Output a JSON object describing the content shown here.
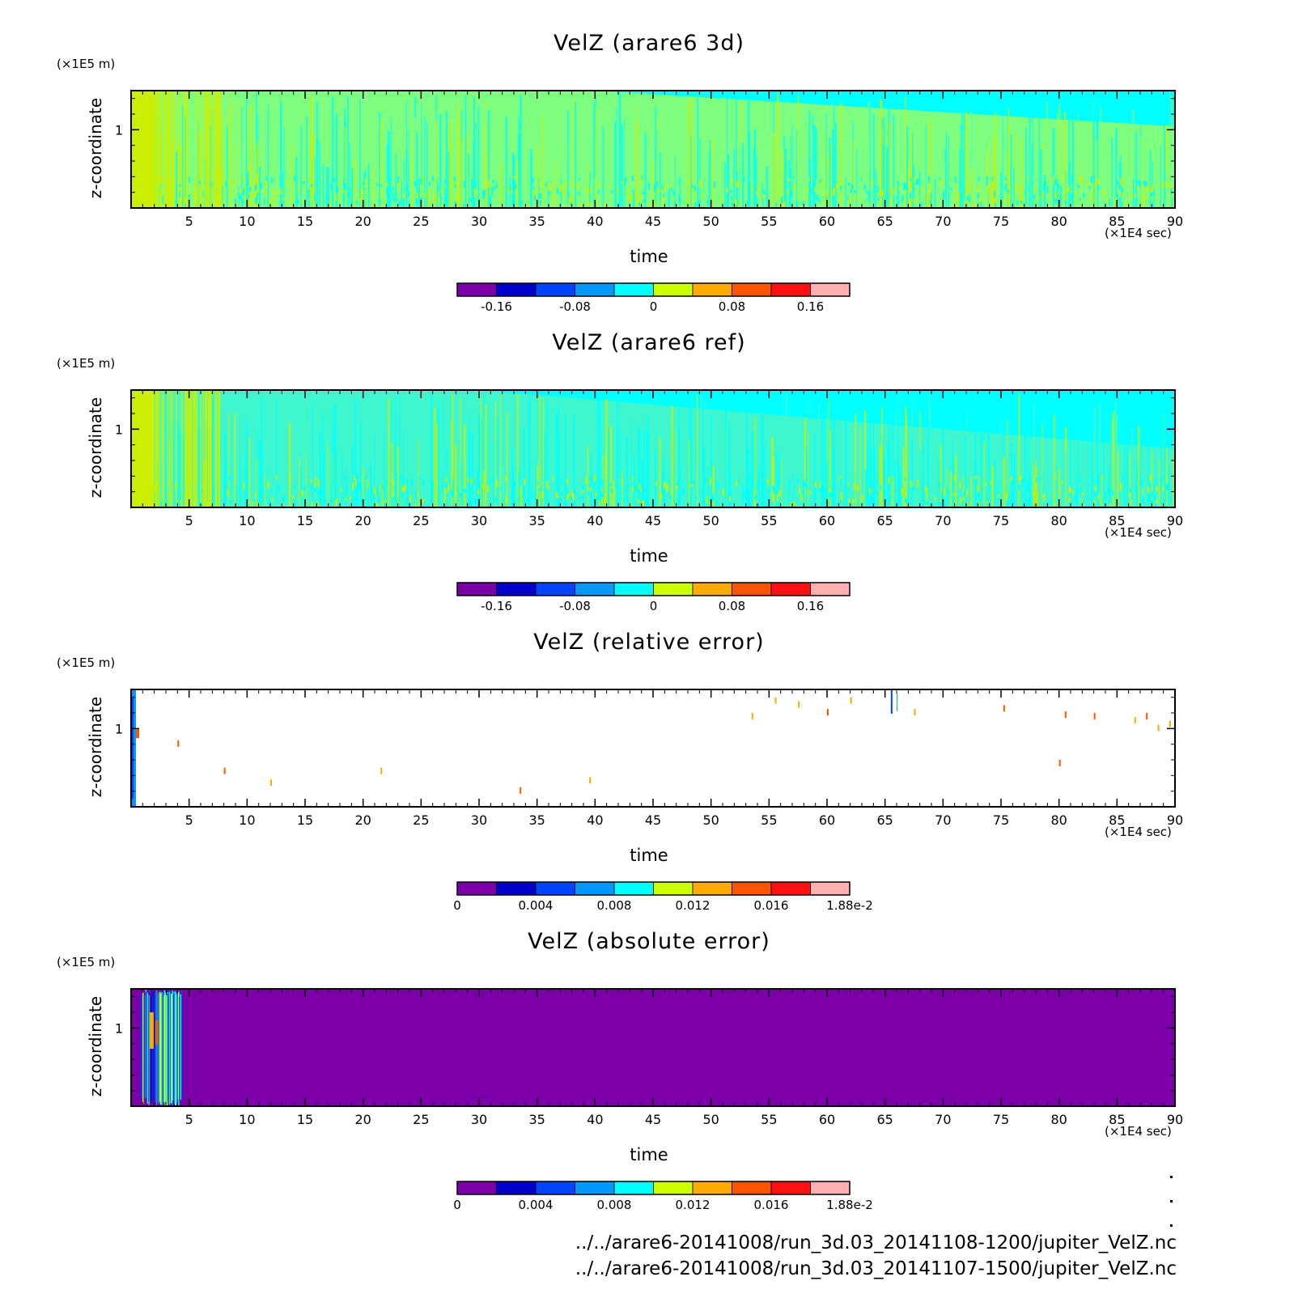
{
  "colors": {
    "cbar": [
      "#7b00aa",
      "#0000cc",
      "#0044ff",
      "#0099ff",
      "#00ffff",
      "#ccff00",
      "#ffaa00",
      "#ff5500",
      "#ff1111",
      "#ffb0b0"
    ],
    "field_bg_3d": "#7fff7f",
    "field_bg_ref": "#3ff7cf",
    "cyan": "#00ffff",
    "abs_bg": "#7b00aa",
    "yellow": "#ccee00"
  },
  "files": [
    "../../arare6-20141008/run_3d.03_20141108-1200/jupiter_VelZ.nc",
    "../../arare6-20141008/run_3d.03_20141107-1500/jupiter_VelZ.nc"
  ],
  "chart_data": [
    {
      "type": "heatmap",
      "title": "VelZ (arare6 3d)",
      "xlabel": "time",
      "ylabel": "z-coordinate",
      "x_unit": "(×1E4 sec)",
      "y_unit": "(×1E5 m)",
      "xlim": [
        0,
        90
      ],
      "ylim": [
        0,
        1.5
      ],
      "xticks": [
        5,
        10,
        15,
        20,
        25,
        30,
        35,
        40,
        45,
        50,
        55,
        60,
        65,
        70,
        75,
        80,
        85,
        90
      ],
      "yticks": [
        1
      ],
      "colorbar": {
        "levels": [
          -0.2,
          -0.16,
          -0.12,
          -0.08,
          -0.04,
          0,
          0.04,
          0.08,
          0.12,
          0.16,
          0.2
        ],
        "tick_labels": [
          "-0.16",
          "-0.08",
          "0",
          "0.08",
          "0.16"
        ]
      }
    },
    {
      "type": "heatmap",
      "title": "VelZ (arare6 ref)",
      "xlabel": "time",
      "ylabel": "z-coordinate",
      "x_unit": "(×1E4 sec)",
      "y_unit": "(×1E5 m)",
      "xlim": [
        0,
        90
      ],
      "ylim": [
        0,
        1.5
      ],
      "xticks": [
        5,
        10,
        15,
        20,
        25,
        30,
        35,
        40,
        45,
        50,
        55,
        60,
        65,
        70,
        75,
        80,
        85,
        90
      ],
      "yticks": [
        1
      ],
      "colorbar": {
        "levels": [
          -0.2,
          -0.16,
          -0.12,
          -0.08,
          -0.04,
          0,
          0.04,
          0.08,
          0.12,
          0.16,
          0.2
        ],
        "tick_labels": [
          "-0.16",
          "-0.08",
          "0",
          "0.08",
          "0.16"
        ]
      }
    },
    {
      "type": "heatmap",
      "title": "VelZ (relative error)",
      "xlabel": "time",
      "ylabel": "z-coordinate",
      "x_unit": "(×1E4 sec)",
      "y_unit": "(×1E5 m)",
      "xlim": [
        0,
        90
      ],
      "ylim": [
        0,
        1.5
      ],
      "xticks": [
        5,
        10,
        15,
        20,
        25,
        30,
        35,
        40,
        45,
        50,
        55,
        60,
        65,
        70,
        75,
        80,
        85,
        90
      ],
      "yticks": [
        1
      ],
      "colorbar": {
        "levels": [
          0,
          0.002,
          0.004,
          0.006,
          0.008,
          0.01,
          0.012,
          0.014,
          0.016,
          0.018,
          0.0188
        ],
        "tick_labels": [
          "0",
          "0.004",
          "0.008",
          "0.012",
          "0.016",
          "1.88e-2"
        ]
      }
    },
    {
      "type": "heatmap",
      "title": "VelZ (absolute error)",
      "xlabel": "time",
      "ylabel": "z-coordinate",
      "x_unit": "(×1E4 sec)",
      "y_unit": "(×1E5 m)",
      "xlim": [
        0,
        90
      ],
      "ylim": [
        0,
        1.5
      ],
      "xticks": [
        5,
        10,
        15,
        20,
        25,
        30,
        35,
        40,
        45,
        50,
        55,
        60,
        65,
        70,
        75,
        80,
        85,
        90
      ],
      "yticks": [
        1
      ],
      "colorbar": {
        "levels": [
          0,
          0.002,
          0.004,
          0.006,
          0.008,
          0.01,
          0.012,
          0.014,
          0.016,
          0.018,
          0.0188
        ],
        "tick_labels": [
          "0",
          "0.004",
          "0.008",
          "0.012",
          "0.016",
          "1.88e-2"
        ]
      }
    }
  ]
}
